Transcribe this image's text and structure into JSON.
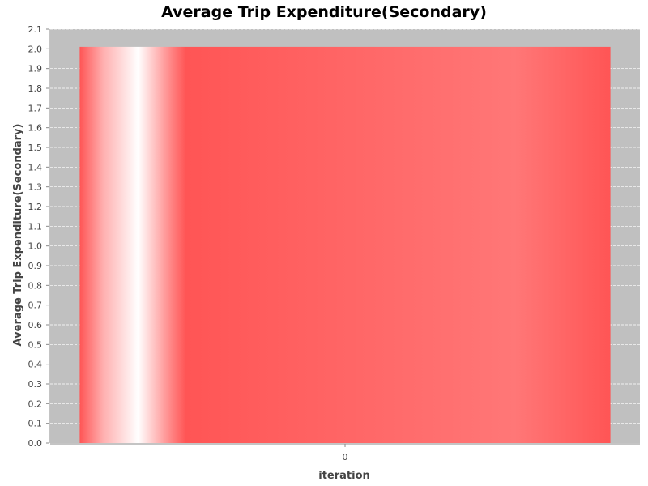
{
  "chart_data": {
    "type": "bar",
    "title": "Average Trip Expenditure(Secondary)",
    "xlabel": "iteration",
    "ylabel": "Average Trip Expenditure(Secondary)",
    "categories": [
      "0"
    ],
    "series": [
      {
        "values": [
          2.01
        ]
      }
    ],
    "ylim": [
      0.0,
      2.1
    ],
    "yticks": [
      "0.0",
      "0.1",
      "0.2",
      "0.3",
      "0.4",
      "0.5",
      "0.6",
      "0.7",
      "0.8",
      "0.9",
      "1.0",
      "1.1",
      "1.2",
      "1.3",
      "1.4",
      "1.5",
      "1.6",
      "1.7",
      "1.8",
      "1.9",
      "2.0",
      "2.1"
    ],
    "grid": true,
    "legend": "none"
  },
  "colors": {
    "plot_background": "#c0c0c0",
    "bar": "#ff5555",
    "bar_highlight": "#ffffff",
    "gridline": "#ffffff",
    "axis": "#888888"
  }
}
